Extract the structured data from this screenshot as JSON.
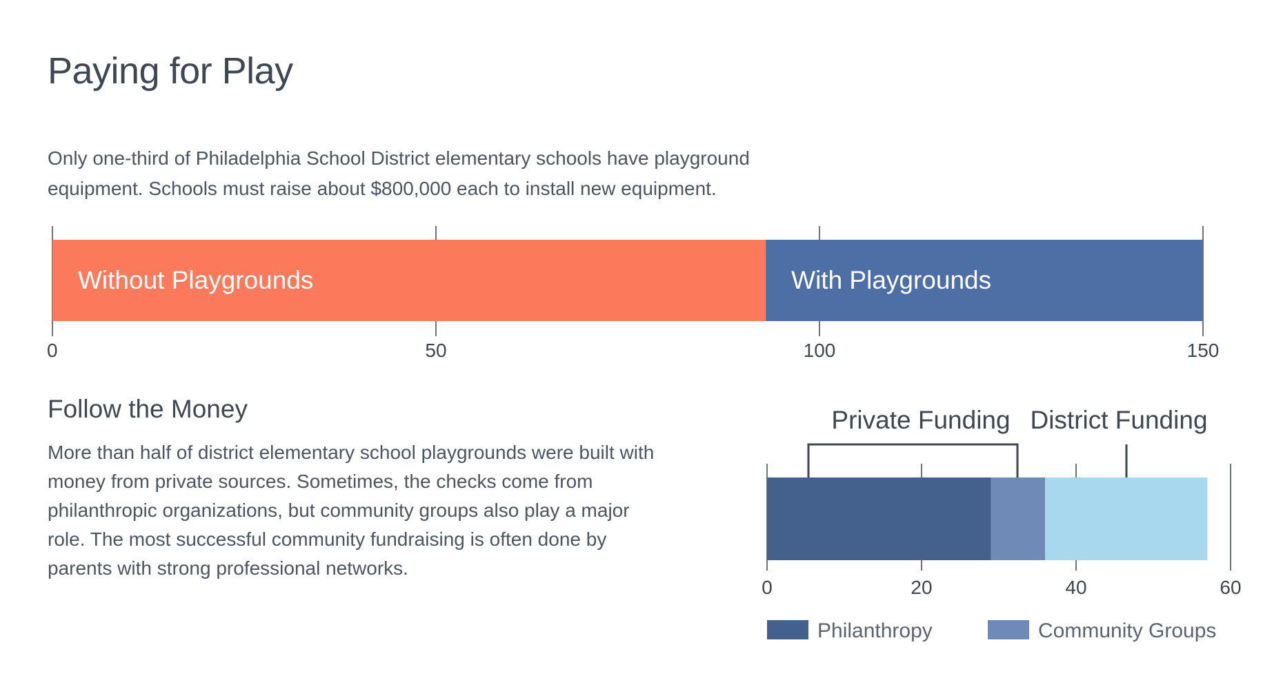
{
  "title": "Paying for Play",
  "intro": "Only one-third of Philadelphia School District elementary schools have playground equipment. Schools must raise about $800,000 each to install new equipment.",
  "section": {
    "title": "Follow the Money",
    "body": "More than half of district elementary school playgrounds were built with money from private sources. Sometimes, the checks come from philanthropic organizations, but community groups also play a major role. The most successful community fundraising is often done by parents with strong professional networks."
  },
  "colors": {
    "without": "#fb7a5b",
    "with": "#4e6fa5",
    "philanthropy": "#44618d",
    "community": "#6f8ab7",
    "district": "#a7d8ee",
    "axis": "#3e4650"
  },
  "chart_data": [
    {
      "type": "bar",
      "orientation": "horizontal-stacked",
      "series": [
        {
          "name": "Without Playgrounds",
          "value": 93
        },
        {
          "name": "With Playgrounds",
          "value": 57
        }
      ],
      "ticks": [
        "0",
        "50",
        "100",
        "150"
      ],
      "tick_values": [
        0,
        50,
        100,
        150
      ],
      "xlim": [
        0,
        150
      ]
    },
    {
      "type": "bar",
      "orientation": "horizontal-stacked",
      "series": [
        {
          "name": "Philanthropy",
          "value": 29
        },
        {
          "name": "Community Groups",
          "value": 7
        },
        {
          "name": "District",
          "value": 21
        }
      ],
      "group_labels": [
        "Private Funding",
        "District Funding"
      ],
      "legend": [
        "Philanthropy",
        "Community Groups"
      ],
      "ticks": [
        "0",
        "20",
        "40",
        "60"
      ],
      "tick_values": [
        0,
        20,
        40,
        60
      ],
      "xlim": [
        0,
        60
      ]
    }
  ]
}
